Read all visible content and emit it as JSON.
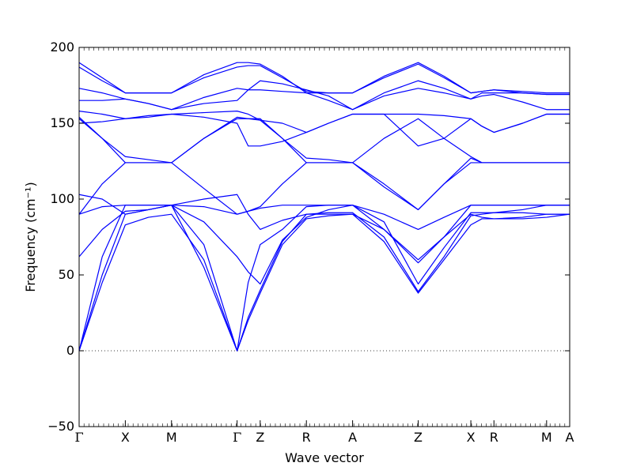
{
  "chart_data": {
    "type": "line",
    "title": "",
    "xlabel": "Wave vector",
    "ylabel": "Frequency (cm⁻¹)",
    "ylim": [
      -50,
      200
    ],
    "yticks": [
      -50,
      0,
      50,
      100,
      150,
      200
    ],
    "high_symmetry_points": [
      {
        "label": "Γ",
        "x": 0.0
      },
      {
        "label": "X",
        "x": 0.5
      },
      {
        "label": "M",
        "x": 1.0
      },
      {
        "label": "Γ",
        "x": 1.71
      },
      {
        "label": "Z",
        "x": 1.96
      },
      {
        "label": "R",
        "x": 2.46
      },
      {
        "label": "A",
        "x": 2.96
      },
      {
        "label": "Z",
        "x": 3.67
      },
      {
        "label": "X",
        "x": 4.24
      },
      {
        "label": "R",
        "x": 4.49
      },
      {
        "label": "M",
        "x": 5.06
      },
      {
        "label": "A",
        "x": 5.31
      }
    ],
    "xlim": [
      0,
      5.31
    ],
    "zero_line": {
      "y": 0,
      "style": "dotted"
    },
    "series_color": "#0000ff",
    "series": [
      {
        "x": [
          0,
          0.25,
          0.5,
          0.75,
          1.0,
          1.35,
          1.71,
          1.83,
          1.96,
          2.2,
          2.46,
          2.7,
          2.96,
          3.3,
          3.67,
          3.95,
          4.24,
          4.36,
          4.49,
          4.8,
          5.06,
          5.18,
          5.31
        ],
        "y": [
          0,
          45,
          83,
          88,
          90,
          60,
          0,
          20,
          38,
          70,
          87,
          89,
          90,
          72,
          38,
          60,
          83,
          87,
          87,
          88,
          90,
          90,
          90
        ]
      },
      {
        "x": [
          0,
          0.25,
          0.5,
          0.75,
          1.0,
          1.35,
          1.71,
          1.83,
          1.96,
          2.2,
          2.46,
          2.7,
          2.96,
          3.3,
          3.67,
          3.95,
          4.24,
          4.36,
          4.49,
          4.8,
          5.06,
          5.18,
          5.31
        ],
        "y": [
          0,
          50,
          90,
          93,
          96,
          55,
          0,
          22,
          40,
          72,
          90,
          91,
          91,
          75,
          39,
          62,
          89,
          90,
          91,
          91,
          90,
          90,
          90
        ]
      },
      {
        "x": [
          0,
          0.25,
          0.5,
          0.75,
          1.0,
          1.35,
          1.71,
          1.83,
          1.96,
          2.2,
          2.46,
          2.7,
          2.96,
          3.3,
          3.67,
          3.95,
          4.24,
          4.36,
          4.49,
          4.8,
          5.06,
          5.18,
          5.31
        ],
        "y": [
          0,
          62,
          96,
          96,
          96,
          70,
          0,
          45,
          70,
          80,
          95,
          96,
          96,
          80,
          58,
          75,
          96,
          96,
          96,
          96,
          96,
          96,
          96
        ]
      },
      {
        "x": [
          0,
          0.25,
          0.5,
          0.75,
          1.0,
          1.35,
          1.71,
          1.83,
          1.96,
          2.2,
          2.46,
          2.7,
          2.96,
          3.3,
          3.67,
          3.95,
          4.24,
          4.36,
          4.49,
          4.8,
          5.06,
          5.18,
          5.31
        ],
        "y": [
          62,
          80,
          92,
          93,
          96,
          85,
          62,
          52,
          44,
          73,
          88,
          93,
          96,
          85,
          44,
          68,
          91,
          91,
          91,
          93,
          96,
          96,
          96
        ]
      },
      {
        "x": [
          0,
          0.25,
          0.5,
          0.75,
          1.0,
          1.35,
          1.71,
          1.83,
          1.96,
          2.2,
          2.46,
          2.7,
          2.96,
          3.3,
          3.67,
          3.95,
          4.24,
          4.36,
          4.49,
          4.8,
          5.06,
          5.18,
          5.31
        ],
        "y": [
          90,
          95,
          96,
          96,
          96,
          95,
          90,
          92,
          94,
          96,
          96,
          96,
          96,
          90,
          80,
          88,
          96,
          96,
          96,
          96,
          96,
          96,
          96
        ]
      },
      {
        "x": [
          0,
          0.25,
          0.5,
          0.75,
          1.0,
          1.35,
          1.71,
          1.83,
          1.96,
          2.2,
          2.46,
          2.7,
          2.96,
          3.3,
          3.67,
          3.95,
          4.24,
          4.36,
          4.49,
          4.8,
          5.06,
          5.18,
          5.31
        ],
        "y": [
          103,
          100,
          90,
          93,
          96,
          100,
          103,
          90,
          80,
          86,
          90,
          90,
          90,
          80,
          60,
          75,
          90,
          88,
          87,
          87,
          88,
          89,
          90
        ]
      },
      {
        "x": [
          0,
          0.25,
          0.5,
          0.75,
          1.0,
          1.35,
          1.71,
          1.83,
          1.96,
          2.2,
          2.46,
          2.7,
          2.96,
          3.3,
          3.67,
          3.95,
          4.24,
          4.36,
          4.49,
          4.8,
          5.06,
          5.18,
          5.31
        ],
        "y": [
          90,
          110,
          124,
          124,
          124,
          107,
          90,
          92,
          95,
          110,
          124,
          124,
          124,
          108,
          93,
          110,
          127,
          124,
          124,
          124,
          124,
          124,
          124
        ]
      },
      {
        "x": [
          0,
          0.25,
          0.5,
          0.75,
          1.0,
          1.35,
          1.71,
          1.83,
          1.96,
          2.2,
          2.46,
          2.7,
          2.96,
          3.3,
          3.67,
          3.95,
          4.24,
          4.36,
          4.49,
          4.8,
          5.06,
          5.18,
          5.31
        ],
        "y": [
          153,
          140,
          128,
          126,
          124,
          140,
          153,
          153,
          153,
          140,
          127,
          126,
          124,
          140,
          153,
          140,
          128,
          124,
          124,
          124,
          124,
          124,
          124
        ]
      },
      {
        "x": [
          0,
          0.25,
          0.5,
          0.75,
          1.0,
          1.35,
          1.71,
          1.83,
          1.96,
          2.2,
          2.46,
          2.7,
          2.96,
          3.3,
          3.67,
          3.95,
          4.24,
          4.36,
          4.49,
          4.8,
          5.06,
          5.18,
          5.31
        ],
        "y": [
          154,
          140,
          124,
          124,
          124,
          140,
          154,
          153,
          152,
          140,
          124,
          124,
          124,
          110,
          93,
          110,
          124,
          124,
          124,
          124,
          124,
          124,
          124
        ]
      },
      {
        "x": [
          0,
          0.25,
          0.5,
          0.75,
          1.0,
          1.35,
          1.71,
          1.83,
          1.96,
          2.2,
          2.46,
          2.7,
          2.96,
          3.3,
          3.67,
          3.95,
          4.24,
          4.36,
          4.49,
          4.8,
          5.06,
          5.18,
          5.31
        ],
        "y": [
          150,
          151,
          153,
          154,
          156,
          154,
          150,
          135,
          135,
          138,
          144,
          150,
          156,
          156,
          135,
          140,
          153,
          148,
          144,
          150,
          156,
          156,
          156
        ]
      },
      {
        "x": [
          0,
          0.25,
          0.5,
          0.75,
          1.0,
          1.35,
          1.71,
          1.83,
          1.96,
          2.2,
          2.46,
          2.7,
          2.96,
          3.3,
          3.67,
          3.95,
          4.24,
          4.36,
          4.49,
          4.8,
          5.06,
          5.18,
          5.31
        ],
        "y": [
          158,
          156,
          153,
          155,
          156,
          157,
          158,
          156,
          152,
          150,
          144,
          150,
          156,
          156,
          156,
          155,
          153,
          148,
          144,
          150,
          156,
          156,
          156
        ]
      },
      {
        "x": [
          0,
          0.25,
          0.5,
          0.75,
          1.0,
          1.35,
          1.71,
          1.83,
          1.96,
          2.2,
          2.46,
          2.7,
          2.96,
          3.3,
          3.67,
          3.95,
          4.24,
          4.36,
          4.49,
          4.8,
          5.06,
          5.18,
          5.31
        ],
        "y": [
          165,
          165,
          166,
          163,
          159,
          163,
          165,
          172,
          178,
          176,
          172,
          168,
          159,
          168,
          173,
          170,
          166,
          170,
          170,
          170,
          169,
          169,
          169
        ]
      },
      {
        "x": [
          0,
          0.25,
          0.5,
          0.75,
          1.0,
          1.35,
          1.71,
          1.83,
          1.96,
          2.2,
          2.46,
          2.7,
          2.96,
          3.3,
          3.67,
          3.95,
          4.24,
          4.36,
          4.49,
          4.8,
          5.06,
          5.18,
          5.31
        ],
        "y": [
          173,
          170,
          166,
          163,
          159,
          167,
          173,
          172,
          172,
          171,
          170,
          165,
          159,
          170,
          178,
          173,
          166,
          168,
          169,
          164,
          159,
          159,
          159
        ]
      },
      {
        "x": [
          0,
          0.25,
          0.5,
          0.75,
          1.0,
          1.35,
          1.71,
          1.83,
          1.96,
          2.2,
          2.46,
          2.7,
          2.96,
          3.3,
          3.67,
          3.95,
          4.24,
          4.36,
          4.49,
          4.8,
          5.06,
          5.18,
          5.31
        ],
        "y": [
          187,
          178,
          170,
          170,
          170,
          180,
          187,
          188,
          188,
          180,
          171,
          170,
          170,
          180,
          189,
          180,
          170,
          171,
          172,
          171,
          170,
          170,
          170
        ]
      },
      {
        "x": [
          0,
          0.25,
          0.5,
          0.75,
          1.0,
          1.35,
          1.71,
          1.83,
          1.96,
          2.2,
          2.46,
          2.7,
          2.96,
          3.3,
          3.67,
          3.95,
          4.24,
          4.36,
          4.49,
          4.8,
          5.06,
          5.18,
          5.31
        ],
        "y": [
          190,
          180,
          170,
          170,
          170,
          182,
          190,
          190,
          189,
          181,
          170,
          170,
          170,
          181,
          190,
          181,
          170,
          171,
          172,
          170,
          169,
          169,
          169
        ]
      }
    ]
  }
}
